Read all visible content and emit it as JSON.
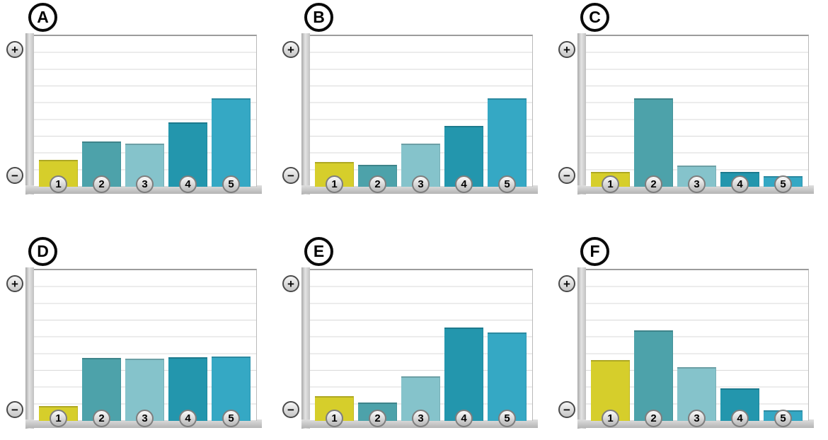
{
  "figure": {
    "description": "Six bar-chart panels labeled A to F, each with five numbered bars on a plus/minus vertical scale with horizontal gridlines"
  },
  "axis": {
    "plus_glyph": "+",
    "minus_glyph": "−",
    "plus_icon": "circled-plus",
    "minus_icon": "circled-minus",
    "grid_rows": 9
  },
  "bar_labels": [
    "1",
    "2",
    "3",
    "4",
    "5"
  ],
  "bar_colors": [
    "#d6ce2b",
    "#4da2aa",
    "#85c3cb",
    "#2396ad",
    "#35a8c4"
  ],
  "chart_data": [
    {
      "type": "bar",
      "panel": "A",
      "categories": [
        "1",
        "2",
        "3",
        "4",
        "5"
      ],
      "values": [
        1.6,
        2.7,
        2.6,
        3.85,
        5.3
      ],
      "ylim": [
        0,
        9
      ],
      "y_axis_labels": {
        "top": "+",
        "bottom": "−"
      },
      "grid": true,
      "legend": false
    },
    {
      "type": "bar",
      "panel": "B",
      "categories": [
        "1",
        "2",
        "3",
        "4",
        "5"
      ],
      "values": [
        1.5,
        1.3,
        2.6,
        3.65,
        5.3
      ],
      "ylim": [
        0,
        9
      ],
      "y_axis_labels": {
        "top": "+",
        "bottom": "−"
      },
      "grid": true,
      "legend": false
    },
    {
      "type": "bar",
      "panel": "C",
      "categories": [
        "1",
        "2",
        "3",
        "4",
        "5"
      ],
      "values": [
        0.9,
        5.3,
        1.25,
        0.9,
        0.65
      ],
      "ylim": [
        0,
        9
      ],
      "y_axis_labels": {
        "top": "+",
        "bottom": "−"
      },
      "grid": true,
      "legend": false
    },
    {
      "type": "bar",
      "panel": "D",
      "categories": [
        "1",
        "2",
        "3",
        "4",
        "5"
      ],
      "values": [
        0.9,
        3.75,
        3.7,
        3.8,
        3.85
      ],
      "ylim": [
        0,
        9
      ],
      "y_axis_labels": {
        "top": "+",
        "bottom": "−"
      },
      "grid": true,
      "legend": false
    },
    {
      "type": "bar",
      "panel": "E",
      "categories": [
        "1",
        "2",
        "3",
        "4",
        "5"
      ],
      "values": [
        1.5,
        1.1,
        2.65,
        5.6,
        5.3
      ],
      "ylim": [
        0,
        9
      ],
      "y_axis_labels": {
        "top": "+",
        "bottom": "−"
      },
      "grid": true,
      "legend": false
    },
    {
      "type": "bar",
      "panel": "F",
      "categories": [
        "1",
        "2",
        "3",
        "4",
        "5"
      ],
      "values": [
        3.65,
        5.4,
        3.2,
        1.95,
        0.65
      ],
      "ylim": [
        0,
        9
      ],
      "y_axis_labels": {
        "top": "+",
        "bottom": "−"
      },
      "grid": true,
      "legend": false
    }
  ]
}
